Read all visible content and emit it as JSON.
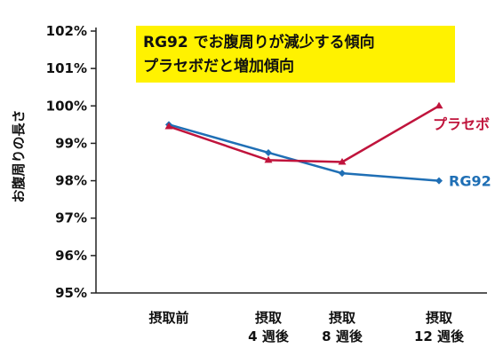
{
  "chart_data": {
    "type": "line",
    "title": "",
    "xlabel": "",
    "ylabel": "お腹周りの長さ",
    "y_ticks": [
      "95%",
      "96%",
      "97%",
      "98%",
      "99%",
      "100%",
      "101%",
      "102%"
    ],
    "ylim": [
      95,
      102
    ],
    "categories": [
      [
        "摂取前"
      ],
      [
        "摂取",
        "4 週後"
      ],
      [
        "摂取",
        "8 週後"
      ],
      [
        "摂取",
        "12 週後"
      ]
    ],
    "series": [
      {
        "name": "RG92",
        "color": "#1f6fb5",
        "values": [
          99.5,
          98.75,
          98.2,
          98.0
        ]
      },
      {
        "name": "プラセボ",
        "color": "#c0143c",
        "values": [
          99.45,
          98.55,
          98.5,
          100.0
        ]
      }
    ],
    "grid": false,
    "annotation": {
      "lines": [
        "RG92 でお腹周りが減少する傾向",
        "プラセボだと増加傾向"
      ],
      "background": "#fff200"
    }
  }
}
